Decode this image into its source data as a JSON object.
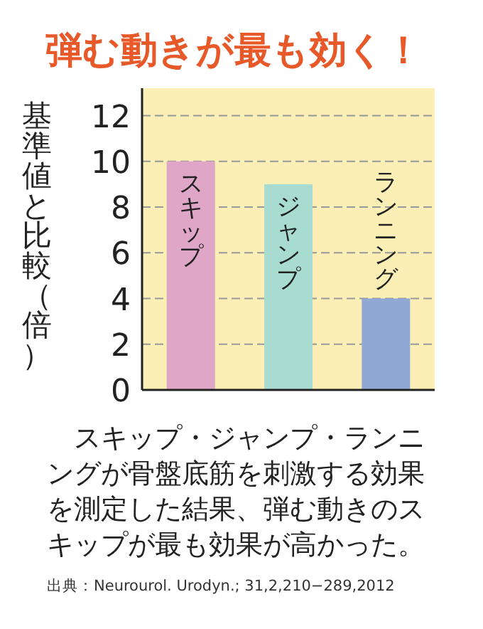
{
  "chart_data": {
    "type": "bar",
    "title": "弾む動きが最も効く！",
    "ylabel": "基準値と比較（倍）",
    "categories": [
      "スキップ",
      "ジャンプ",
      "ランニング"
    ],
    "values": [
      10,
      9,
      4
    ],
    "colors": [
      "#e0a6c8",
      "#a8dcd0",
      "#8fa8d4"
    ],
    "ylim": [
      0,
      13.2
    ],
    "yticks": [
      0,
      2,
      4,
      6,
      8,
      10,
      12
    ],
    "grid": "y",
    "annotations": [
      "　スキップ・ジャンプ・ランニングが骨盤底筋を刺激する効果を測定した結果、弾む動きのスキップが最も効果が高かった。",
      "出典：Neurourol. Urodyn.; 31,2,210−289,2012"
    ]
  }
}
